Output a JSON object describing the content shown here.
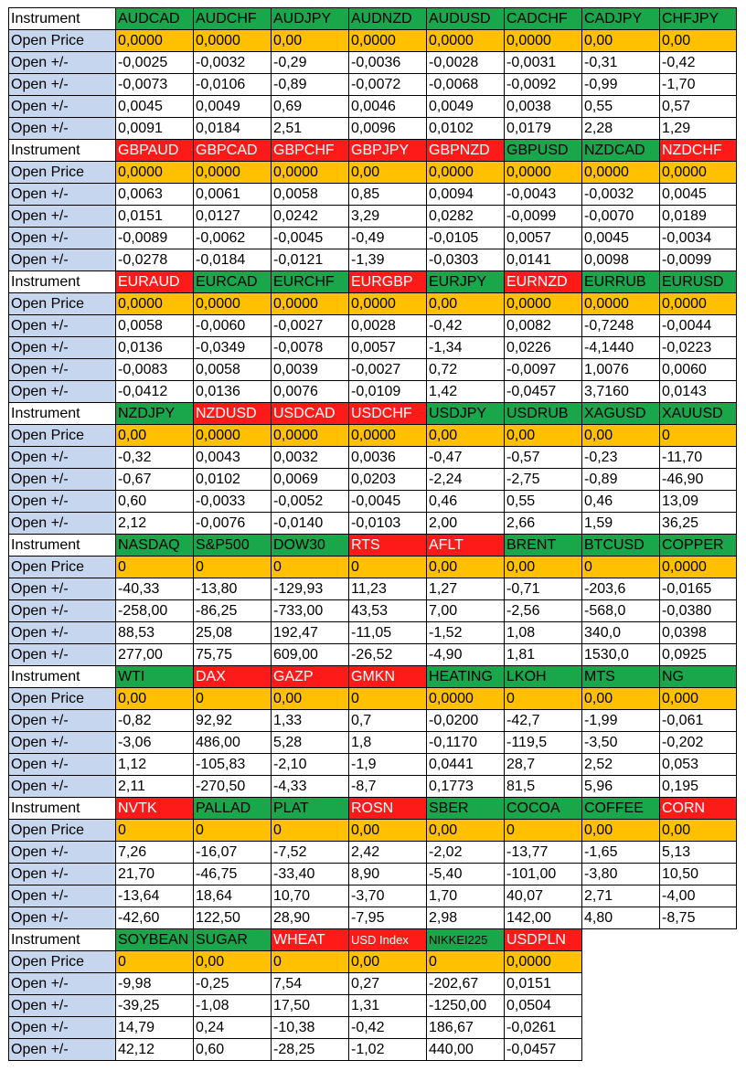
{
  "colors": {
    "green": "#1aa64a",
    "red": "#ff1a1a",
    "orange": "#ffc000",
    "label_blue": "#c5d6ee",
    "white": "#ffffff"
  },
  "row_labels": {
    "instrument": "Instrument",
    "open_price": "Open Price",
    "open_delta": "Open +/-"
  },
  "blocks": [
    {
      "instruments": [
        {
          "name": "AUDCAD",
          "color": "green"
        },
        {
          "name": "AUDCHF",
          "color": "green"
        },
        {
          "name": "AUDJPY",
          "color": "green"
        },
        {
          "name": "AUDNZD",
          "color": "green"
        },
        {
          "name": "AUDUSD",
          "color": "green"
        },
        {
          "name": "CADCHF",
          "color": "green"
        },
        {
          "name": "CADJPY",
          "color": "green"
        },
        {
          "name": "CHFJPY",
          "color": "green"
        }
      ],
      "open_price": [
        "0,0000",
        "0,0000",
        "0,00",
        "0,0000",
        "0,0000",
        "0,0000",
        "0,00",
        "0,00"
      ],
      "deltas": [
        [
          "-0,0025",
          "-0,0032",
          "-0,29",
          "-0,0036",
          "-0,0028",
          "-0,0031",
          "-0,31",
          "-0,42"
        ],
        [
          "-0,0073",
          "-0,0106",
          "-0,89",
          "-0,0072",
          "-0,0068",
          "-0,0092",
          "-0,99",
          "-1,70"
        ],
        [
          "0,0045",
          "0,0049",
          "0,69",
          "0,0046",
          "0,0049",
          "0,0038",
          "0,55",
          "0,57"
        ],
        [
          "0,0091",
          "0,0184",
          "2,51",
          "0,0096",
          "0,0102",
          "0,0179",
          "2,28",
          "1,29"
        ]
      ]
    },
    {
      "instruments": [
        {
          "name": "GBPAUD",
          "color": "red"
        },
        {
          "name": "GBPCAD",
          "color": "red"
        },
        {
          "name": "GBPCHF",
          "color": "red"
        },
        {
          "name": "GBPJPY",
          "color": "red"
        },
        {
          "name": "GBPNZD",
          "color": "red"
        },
        {
          "name": "GBPUSD",
          "color": "green"
        },
        {
          "name": "NZDCAD",
          "color": "green"
        },
        {
          "name": "NZDCHF",
          "color": "red"
        }
      ],
      "open_price": [
        "0,0000",
        "0,0000",
        "0,0000",
        "0,00",
        "0,0000",
        "0,0000",
        "0,0000",
        "0,0000"
      ],
      "deltas": [
        [
          "0,0063",
          "0,0061",
          "0,0058",
          "0,85",
          "0,0094",
          "-0,0043",
          "-0,0032",
          "0,0045"
        ],
        [
          "0,0151",
          "0,0127",
          "0,0242",
          "3,29",
          "0,0282",
          "-0,0099",
          "-0,0070",
          "0,0189"
        ],
        [
          "-0,0089",
          "-0,0062",
          "-0,0045",
          "-0,49",
          "-0,0105",
          "0,0057",
          "0,0045",
          "-0,0034"
        ],
        [
          "-0,0278",
          "-0,0184",
          "-0,0121",
          "-1,39",
          "-0,0303",
          "0,0141",
          "0,0098",
          "-0,0099"
        ]
      ]
    },
    {
      "instruments": [
        {
          "name": "EURAUD",
          "color": "red"
        },
        {
          "name": "EURCAD",
          "color": "green"
        },
        {
          "name": "EURCHF",
          "color": "green"
        },
        {
          "name": "EURGBP",
          "color": "red"
        },
        {
          "name": "EURJPY",
          "color": "green"
        },
        {
          "name": "EURNZD",
          "color": "red"
        },
        {
          "name": "EURRUB",
          "color": "green"
        },
        {
          "name": "EURUSD",
          "color": "green"
        }
      ],
      "open_price": [
        "0,0000",
        "0,0000",
        "0,0000",
        "0,0000",
        "0,00",
        "0,0000",
        "0,0000",
        "0,0000"
      ],
      "deltas": [
        [
          "0,0058",
          "-0,0060",
          "-0,0027",
          "0,0028",
          "-0,42",
          "0,0082",
          "-0,7248",
          "-0,0044"
        ],
        [
          "0,0136",
          "-0,0349",
          "-0,0078",
          "0,0057",
          "-1,34",
          "0,0226",
          "-4,1440",
          "-0,0223"
        ],
        [
          "-0,0083",
          "0,0058",
          "0,0039",
          "-0,0027",
          "0,72",
          "-0,0097",
          "1,0076",
          "0,0060"
        ],
        [
          "-0,0412",
          "0,0136",
          "0,0076",
          "-0,0109",
          "1,42",
          "-0,0457",
          "3,7160",
          "0,0143"
        ]
      ]
    },
    {
      "instruments": [
        {
          "name": "NZDJPY",
          "color": "green"
        },
        {
          "name": "NZDUSD",
          "color": "red"
        },
        {
          "name": "USDCAD",
          "color": "red"
        },
        {
          "name": "USDCHF",
          "color": "red"
        },
        {
          "name": "USDJPY",
          "color": "green"
        },
        {
          "name": "USDRUB",
          "color": "green"
        },
        {
          "name": "XAGUSD",
          "color": "green"
        },
        {
          "name": "XAUUSD",
          "color": "green"
        }
      ],
      "open_price": [
        "0,00",
        "0,0000",
        "0,0000",
        "0,0000",
        "0,00",
        "0,00",
        "0,00",
        "0"
      ],
      "deltas": [
        [
          "-0,32",
          "0,0043",
          "0,0032",
          "0,0036",
          "-0,47",
          "-0,57",
          "-0,23",
          "-11,70"
        ],
        [
          "-0,67",
          "0,0102",
          "0,0069",
          "0,0203",
          "-2,24",
          "-2,75",
          "-0,89",
          "-46,90"
        ],
        [
          "0,60",
          "-0,0033",
          "-0,0052",
          "-0,0045",
          "0,46",
          "0,55",
          "0,46",
          "13,09"
        ],
        [
          "2,12",
          "-0,0076",
          "-0,0140",
          "-0,0103",
          "2,00",
          "2,66",
          "1,59",
          "36,25"
        ]
      ]
    },
    {
      "instruments": [
        {
          "name": "NASDAQ",
          "color": "green"
        },
        {
          "name": "S&P500",
          "color": "green"
        },
        {
          "name": "DOW30",
          "color": "green"
        },
        {
          "name": "RTS",
          "color": "red"
        },
        {
          "name": "AFLT",
          "color": "red"
        },
        {
          "name": "BRENT",
          "color": "green"
        },
        {
          "name": "BTCUSD",
          "color": "green"
        },
        {
          "name": "COPPER",
          "color": "green"
        }
      ],
      "open_price": [
        "0",
        "0",
        "0",
        "0",
        "0,00",
        "0,00",
        "0",
        "0,0000"
      ],
      "deltas": [
        [
          "-40,33",
          "-13,80",
          "-129,93",
          "11,23",
          "1,27",
          "-0,71",
          "-203,6",
          "-0,0165"
        ],
        [
          "-258,00",
          "-86,25",
          "-733,00",
          "43,53",
          "7,00",
          "-2,56",
          "-568,0",
          "-0,0380"
        ],
        [
          "88,53",
          "25,08",
          "192,47",
          "-11,05",
          "-1,52",
          "1,08",
          "340,0",
          "0,0398"
        ],
        [
          "277,00",
          "75,75",
          "609,00",
          "-26,52",
          "-4,90",
          "1,81",
          "1530,0",
          "0,0925"
        ]
      ]
    },
    {
      "instruments": [
        {
          "name": "WTI",
          "color": "green"
        },
        {
          "name": "DAX",
          "color": "red"
        },
        {
          "name": "GAZP",
          "color": "red"
        },
        {
          "name": "GMKN",
          "color": "red"
        },
        {
          "name": "HEATING",
          "color": "green"
        },
        {
          "name": "LKOH",
          "color": "green"
        },
        {
          "name": "MTS",
          "color": "green"
        },
        {
          "name": "NG",
          "color": "green"
        }
      ],
      "open_price": [
        "0,00",
        "0",
        "0,00",
        "0",
        "0,0000",
        "0",
        "0,00",
        "0,000"
      ],
      "deltas": [
        [
          "-0,82",
          "92,92",
          "1,33",
          "0,7",
          "-0,0200",
          "-42,7",
          "-1,99",
          "-0,061"
        ],
        [
          "-3,06",
          "486,00",
          "5,28",
          "1,8",
          "-0,1170",
          "-119,5",
          "-3,50",
          "-0,202"
        ],
        [
          "1,12",
          "-105,83",
          "-2,10",
          "-1,9",
          "0,0441",
          "28,7",
          "2,52",
          "0,053"
        ],
        [
          "2,11",
          "-270,50",
          "-4,33",
          "-8,7",
          "0,1773",
          "81,5",
          "5,96",
          "0,195"
        ]
      ]
    },
    {
      "instruments": [
        {
          "name": "NVTK",
          "color": "red"
        },
        {
          "name": "PALLAD",
          "color": "green"
        },
        {
          "name": "PLAT",
          "color": "green"
        },
        {
          "name": "ROSN",
          "color": "red"
        },
        {
          "name": "SBER",
          "color": "green"
        },
        {
          "name": "COCOA",
          "color": "green"
        },
        {
          "name": "COFFEE",
          "color": "green"
        },
        {
          "name": "CORN",
          "color": "red"
        }
      ],
      "open_price": [
        "0",
        "0",
        "0",
        "0,00",
        "0,00",
        "0",
        "0,00",
        "0,00"
      ],
      "deltas": [
        [
          "7,26",
          "-16,07",
          "-7,52",
          "2,42",
          "-2,02",
          "-13,77",
          "-1,65",
          "5,13"
        ],
        [
          "21,70",
          "-46,75",
          "-33,40",
          "8,90",
          "-5,40",
          "-101,00",
          "-3,80",
          "10,50"
        ],
        [
          "-13,64",
          "18,64",
          "10,70",
          "-3,70",
          "1,70",
          "40,07",
          "2,71",
          "-4,00"
        ],
        [
          "-42,60",
          "122,50",
          "28,90",
          "-7,95",
          "2,98",
          "142,00",
          "4,80",
          "-8,75"
        ]
      ]
    },
    {
      "instruments": [
        {
          "name": "SOYBEAN",
          "color": "green"
        },
        {
          "name": "SUGAR",
          "color": "green"
        },
        {
          "name": "WHEAT",
          "color": "red"
        },
        {
          "name": "USD Index",
          "color": "red",
          "small": true
        },
        {
          "name": "NIKKEI225",
          "color": "green",
          "small": true
        },
        {
          "name": "USDPLN",
          "color": "red"
        }
      ],
      "open_price": [
        "0",
        "0,00",
        "0",
        "0,00",
        "0",
        "0,0000"
      ],
      "deltas": [
        [
          "-9,98",
          "-0,25",
          "7,54",
          "0,27",
          "-202,67",
          "0,0151"
        ],
        [
          "-39,25",
          "-1,08",
          "17,50",
          "1,31",
          "-1250,00",
          "0,0504"
        ],
        [
          "14,79",
          "0,24",
          "-10,38",
          "-0,42",
          "186,67",
          "-0,0261"
        ],
        [
          "42,12",
          "0,60",
          "-28,25",
          "-1,02",
          "440,00",
          "-0,0457"
        ]
      ]
    }
  ]
}
